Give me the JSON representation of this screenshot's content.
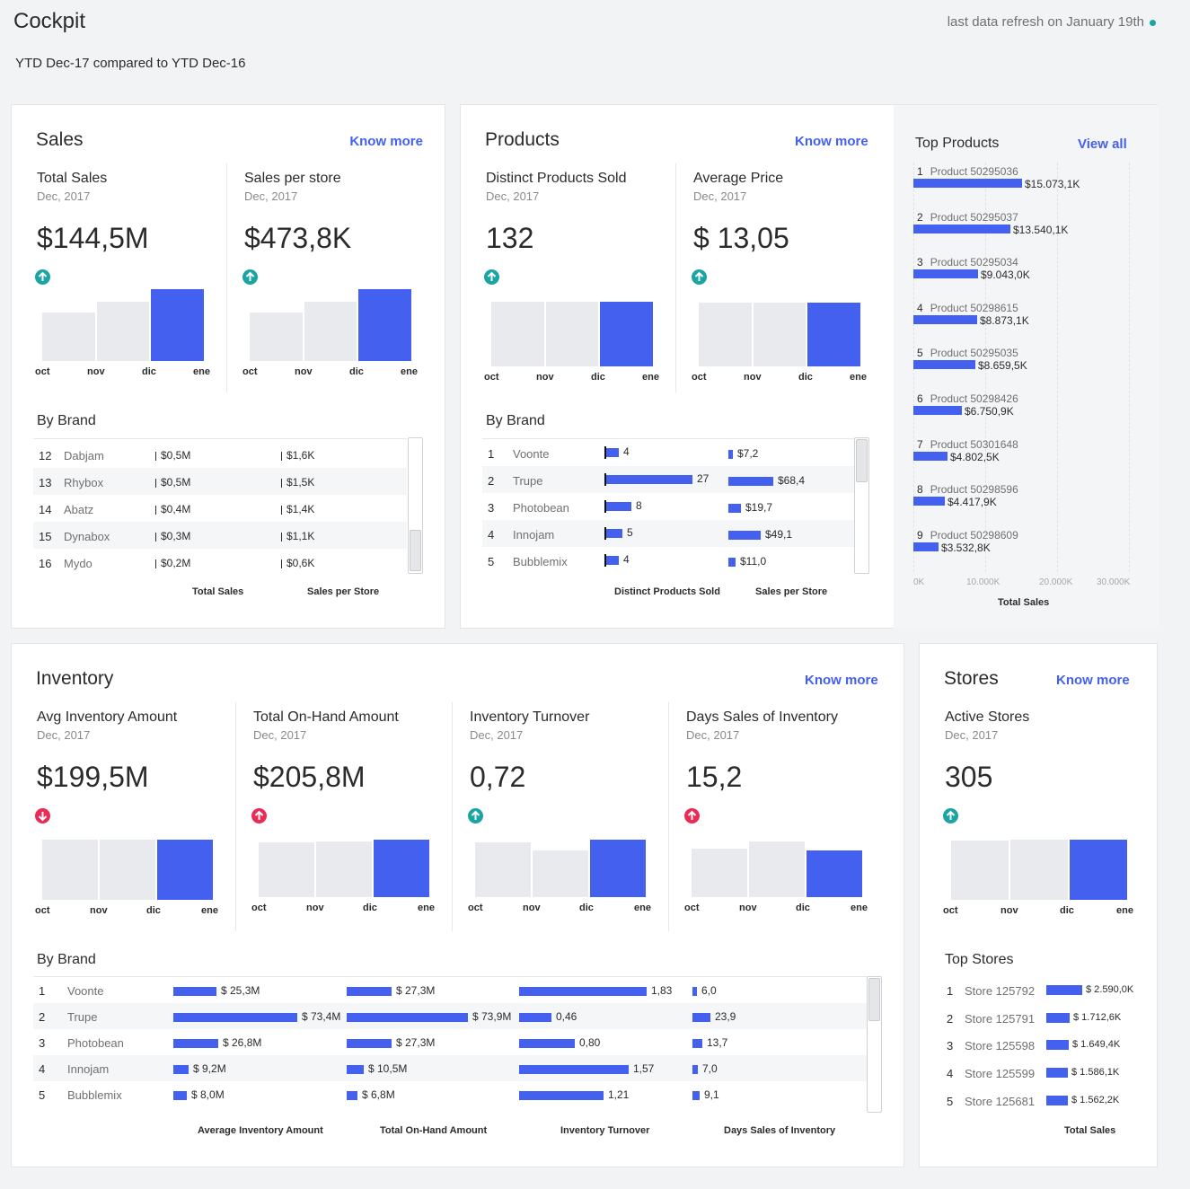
{
  "header": {
    "title": "Cockpit",
    "refresh_text": "last data refresh on January 19th",
    "subtitle": "YTD Dec-17 compared to YTD Dec-16"
  },
  "colors": {
    "accent": "#4361ee",
    "up": "#1aa4a2",
    "down": "#ea2b55",
    "bar_gray": "#e8eaed"
  },
  "months": [
    "oct",
    "nov",
    "dic",
    "ene"
  ],
  "sales": {
    "title": "Sales",
    "know_more": "Know more",
    "kpis": [
      {
        "label": "Total Sales",
        "date": "Dec, 2017",
        "value": "$144,5M",
        "trend": "up",
        "bars": [
          0.68,
          0.83,
          1.0
        ]
      },
      {
        "label": "Sales per store",
        "date": "Dec, 2017",
        "value": "$473,8K",
        "trend": "up",
        "bars": [
          0.68,
          0.83,
          1.0
        ]
      }
    ],
    "by_brand_label": "By Brand",
    "brands": [
      {
        "rank": "12",
        "name": "Dabjam",
        "total": "$0,5M",
        "per_store": "$1,6K"
      },
      {
        "rank": "13",
        "name": "Rhybox",
        "total": "$0,5M",
        "per_store": "$1,5K"
      },
      {
        "rank": "14",
        "name": "Abatz",
        "total": "$0,4M",
        "per_store": "$1,4K"
      },
      {
        "rank": "15",
        "name": "Dynabox",
        "total": "$0,3M",
        "per_store": "$1,1K"
      },
      {
        "rank": "16",
        "name": "Mydo",
        "total": "$0,2M",
        "per_store": "$0,6K"
      }
    ],
    "col_labels": [
      "Total Sales",
      "Sales per Store"
    ]
  },
  "products": {
    "title": "Products",
    "know_more": "Know more",
    "kpis": [
      {
        "label": "Distinct Products Sold",
        "date": "Dec, 2017",
        "value": "132",
        "trend": "up",
        "bars": [
          1.0,
          1.0,
          1.0
        ]
      },
      {
        "label": "Average Price",
        "date": "Dec, 2017",
        "value": "$ 13,05",
        "trend": "up",
        "bars": [
          1.0,
          1.0,
          1.0
        ]
      }
    ],
    "by_brand_label": "By Brand",
    "brands": [
      {
        "rank": "1",
        "name": "Voonte",
        "distinct": 4,
        "distinct_label": "4",
        "per_store": 7.2,
        "per_store_label": "$7,2"
      },
      {
        "rank": "2",
        "name": "Trupe",
        "distinct": 27,
        "distinct_label": "27",
        "per_store": 68.4,
        "per_store_label": "$68,4"
      },
      {
        "rank": "3",
        "name": "Photobean",
        "distinct": 8,
        "distinct_label": "8",
        "per_store": 19.7,
        "per_store_label": "$19,7"
      },
      {
        "rank": "4",
        "name": "Innojam",
        "distinct": 5,
        "distinct_label": "5",
        "per_store": 49.1,
        "per_store_label": "$49,1"
      },
      {
        "rank": "5",
        "name": "Bubblemix",
        "distinct": 4,
        "distinct_label": "4",
        "per_store": 11.0,
        "per_store_label": "$11,0"
      }
    ],
    "col_labels": [
      "Distinct Products Sold",
      "Sales per Store"
    ]
  },
  "top_products": {
    "title": "Top Products",
    "view_all": "View all",
    "axis_label": "Total Sales",
    "ticks": [
      "0K",
      "10.000K",
      "20.000K",
      "30.000K"
    ],
    "items": [
      {
        "rank": "1",
        "name": "Product 50295036",
        "value": 15073.1,
        "label": "$15.073,1K"
      },
      {
        "rank": "2",
        "name": "Product 50295037",
        "value": 13540.1,
        "label": "$13.540,1K"
      },
      {
        "rank": "3",
        "name": "Product 50295034",
        "value": 9043.0,
        "label": "$9.043,0K"
      },
      {
        "rank": "4",
        "name": "Product 50298615",
        "value": 8873.1,
        "label": "$8.873,1K"
      },
      {
        "rank": "5",
        "name": "Product 50295035",
        "value": 8659.5,
        "label": "$8.659,5K"
      },
      {
        "rank": "6",
        "name": "Product 50298426",
        "value": 6750.9,
        "label": "$6.750,9K"
      },
      {
        "rank": "7",
        "name": "Product 50301648",
        "value": 4802.5,
        "label": "$4.802,5K"
      },
      {
        "rank": "8",
        "name": "Product 50298596",
        "value": 4417.9,
        "label": "$4.417,9K"
      },
      {
        "rank": "9",
        "name": "Product 50298609",
        "value": 3532.8,
        "label": "$3.532,8K"
      }
    ]
  },
  "inventory": {
    "title": "Inventory",
    "know_more": "Know more",
    "kpis": [
      {
        "label": "Avg Inventory Amount",
        "date": "Dec, 2017",
        "value": "$199,5M",
        "trend": "down",
        "bars": [
          1.0,
          1.0,
          1.0
        ]
      },
      {
        "label": "Total On-Hand Amount",
        "date": "Dec, 2017",
        "value": "$205,8M",
        "trend": "up-red",
        "bars": [
          0.95,
          0.97,
          1.0
        ]
      },
      {
        "label": "Inventory Turnover",
        "date": "Dec, 2017",
        "value": "0,72",
        "trend": "up",
        "bars": [
          0.95,
          0.82,
          1.0
        ]
      },
      {
        "label": "Days Sales of Inventory",
        "date": "Dec, 2017",
        "value": "15,2",
        "trend": "up-red",
        "bars": [
          0.85,
          0.97,
          0.82
        ]
      }
    ],
    "by_brand_label": "By Brand",
    "brands": [
      {
        "rank": "1",
        "name": "Voonte",
        "avg": 25.3,
        "avg_label": "$ 25,3M",
        "onhand": 27.3,
        "onhand_label": "$ 27,3M",
        "turnover": 1.83,
        "turnover_label": "1,83",
        "days": 6.0,
        "days_label": "6,0"
      },
      {
        "rank": "2",
        "name": "Trupe",
        "avg": 73.4,
        "avg_label": "$ 73,4M",
        "onhand": 73.9,
        "onhand_label": "$ 73,9M",
        "turnover": 0.46,
        "turnover_label": "0,46",
        "days": 23.9,
        "days_label": "23,9"
      },
      {
        "rank": "3",
        "name": "Photobean",
        "avg": 26.8,
        "avg_label": "$ 26,8M",
        "onhand": 27.3,
        "onhand_label": "$ 27,3M",
        "turnover": 0.8,
        "turnover_label": "0,80",
        "days": 13.7,
        "days_label": "13,7"
      },
      {
        "rank": "4",
        "name": "Innojam",
        "avg": 9.2,
        "avg_label": "$ 9,2M",
        "onhand": 10.5,
        "onhand_label": "$ 10,5M",
        "turnover": 1.57,
        "turnover_label": "1,57",
        "days": 7.0,
        "days_label": "7,0"
      },
      {
        "rank": "5",
        "name": "Bubblemix",
        "avg": 8.0,
        "avg_label": "$ 8,0M",
        "onhand": 6.8,
        "onhand_label": "$ 6,8M",
        "turnover": 1.21,
        "turnover_label": "1,21",
        "days": 9.1,
        "days_label": "9,1"
      }
    ],
    "col_labels": [
      "Average Inventory Amount",
      "Total On-Hand Amount",
      "Inventory Turnover",
      "Days Sales of Inventory"
    ]
  },
  "stores": {
    "title": "Stores",
    "know_more": "Know more",
    "kpi": {
      "label": "Active Stores",
      "date": "Dec, 2017",
      "value": "305",
      "trend": "up",
      "bars": [
        0.98,
        1.0,
        1.0
      ]
    },
    "top_label": "Top Stores",
    "items": [
      {
        "rank": "1",
        "name": "Store 125792",
        "value": 2590.0,
        "label": "$ 2.590,0K"
      },
      {
        "rank": "2",
        "name": "Store 125791",
        "value": 1712.6,
        "label": "$ 1.712,6K"
      },
      {
        "rank": "3",
        "name": "Store 125598",
        "value": 1649.4,
        "label": "$ 1.649,4K"
      },
      {
        "rank": "4",
        "name": "Store 125599",
        "value": 1586.1,
        "label": "$ 1.586,1K"
      },
      {
        "rank": "5",
        "name": "Store 125681",
        "value": 1562.2,
        "label": "$ 1.562,2K"
      }
    ],
    "axis_label": "Total Sales"
  }
}
